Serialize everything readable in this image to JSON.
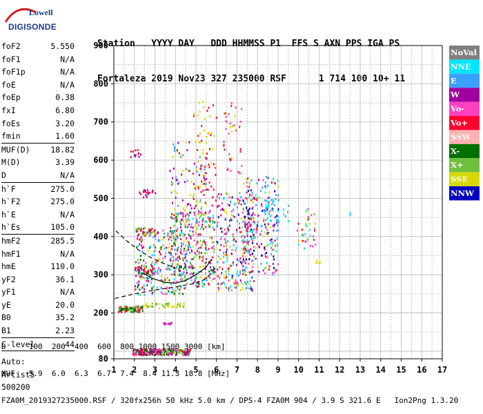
{
  "logo": {
    "line1": "Lowell",
    "line2": "DIGISONDE"
  },
  "header": {
    "line1": "Station   YYYY DAY   DDD HHMMSS P1  FFS S AXN PPS IGA PS",
    "line2": "Fortaleza 2019 Nov23 327 235000 RSF      1 714 100 10+ 11"
  },
  "params_groups": [
    [
      {
        "k": "foF2",
        "v": "5.550"
      },
      {
        "k": "foF1",
        "v": "N/A"
      },
      {
        "k": "foF1p",
        "v": "N/A"
      },
      {
        "k": "foE",
        "v": "N/A"
      },
      {
        "k": "foEp",
        "v": "0.38"
      },
      {
        "k": "fxI",
        "v": "6.80"
      },
      {
        "k": "foEs",
        "v": "3.20"
      },
      {
        "k": "fmin",
        "v": "1.60"
      }
    ],
    [
      {
        "k": "MUF(D)",
        "v": "18.82"
      },
      {
        "k": "M(D)",
        "v": "3.39"
      },
      {
        "k": "D",
        "v": "N/A"
      }
    ],
    [
      {
        "k": "h`F",
        "v": "275.0"
      },
      {
        "k": "h`F2",
        "v": "275.0"
      },
      {
        "k": "h`E",
        "v": "N/A"
      },
      {
        "k": "h`Es",
        "v": "105.0"
      }
    ],
    [
      {
        "k": "hmF2",
        "v": "285.5"
      },
      {
        "k": "hmF1",
        "v": "N/A"
      },
      {
        "k": "hmE",
        "v": "110.0"
      },
      {
        "k": "yF2",
        "v": "36.1"
      },
      {
        "k": "yF1",
        "v": "N/A"
      },
      {
        "k": "yE",
        "v": "20.0"
      },
      {
        "k": "B0",
        "v": "35.2"
      },
      {
        "k": "B1",
        "v": "2.23"
      }
    ],
    [
      {
        "k": "C-level",
        "v": "44"
      }
    ]
  ],
  "auto": {
    "line1": "Auto:",
    "line2": "Artist5",
    "line3": "500200"
  },
  "footer": {
    "d_line": "D     100  200  400  600  800 1000 1500 3000 [km]",
    "muf_line": "MUF   5.9  6.0  6.3  6.7  7.4  8.4 11.3 18.8 [MHz]",
    "file_line": "FZA0M_2019327235000.RSF / 320fx256h 50 kHz 5.0 km / DPS-4 FZA0M 904 / 3.9 S 321.6 E   Ion2Png 1.3.20"
  },
  "chart_data": {
    "type": "scatter",
    "xlabel": "",
    "ylabel": "",
    "xlim": [
      1,
      17
    ],
    "ylim": [
      80,
      900
    ],
    "xticks": [
      1,
      2,
      3,
      4,
      5,
      6,
      7,
      8,
      9,
      10,
      11,
      12,
      13,
      14,
      15,
      16,
      17
    ],
    "yticks": [
      80,
      200,
      300,
      400,
      500,
      600,
      700,
      800,
      900
    ],
    "grid": true,
    "legend_position": "right",
    "legend": [
      {
        "name": "NoVal",
        "color": "#808080"
      },
      {
        "name": "NNE",
        "color": "#00e5ff"
      },
      {
        "name": "E",
        "color": "#3aa0ff"
      },
      {
        "name": "W",
        "color": "#a000a0"
      },
      {
        "name": "Vo-",
        "color": "#ff40c0"
      },
      {
        "name": "Vo+",
        "color": "#ff0030"
      },
      {
        "name": "SSW",
        "color": "#ffb0b0"
      },
      {
        "name": "X-",
        "color": "#007000"
      },
      {
        "name": "X+",
        "color": "#70c040"
      },
      {
        "name": "SSE",
        "color": "#d8d800"
      },
      {
        "name": "NNW",
        "color": "#0000c0"
      }
    ],
    "clusters": [
      {
        "x": [
          1.9,
          3.3
        ],
        "y": [
          92,
          108
        ],
        "n": 160,
        "colors": [
          "#ff0030",
          "#a000a0",
          "#007000",
          "#ff40c0"
        ]
      },
      {
        "x": [
          3.3,
          4.7
        ],
        "y": [
          92,
          108
        ],
        "n": 90,
        "colors": [
          "#007000",
          "#70c040",
          "#a000a0",
          "#ff0030"
        ]
      },
      {
        "x": [
          1.2,
          2.4
        ],
        "y": [
          205,
          220
        ],
        "n": 80,
        "colors": [
          "#ff0030",
          "#007000",
          "#70c040"
        ]
      },
      {
        "x": [
          2.4,
          4.5
        ],
        "y": [
          214,
          228
        ],
        "n": 50,
        "colors": [
          "#d8d800",
          "#70c040"
        ]
      },
      {
        "x": [
          3.4,
          3.8
        ],
        "y": [
          172,
          178
        ],
        "n": 10,
        "colors": [
          "#ff40c0",
          "#a000a0"
        ]
      },
      {
        "x": [
          2.0,
          3.0
        ],
        "y": [
          305,
          325
        ],
        "n": 40,
        "colors": [
          "#ff0030",
          "#a000a0",
          "#007000"
        ]
      },
      {
        "x": [
          2.0,
          3.0
        ],
        "y": [
          405,
          425
        ],
        "n": 40,
        "colors": [
          "#70c040",
          "#ff0030"
        ]
      },
      {
        "x": [
          2.2,
          3.0
        ],
        "y": [
          505,
          525
        ],
        "n": 20,
        "colors": [
          "#ff0030",
          "#a000a0"
        ]
      },
      {
        "x": [
          1.8,
          2.4
        ],
        "y": [
          610,
          630
        ],
        "n": 12,
        "colors": [
          "#ff0030",
          "#a000a0"
        ]
      },
      {
        "x": [
          2.0,
          4.5
        ],
        "y": [
          250,
          420
        ],
        "n": 260,
        "colors": [
          "#3aa0ff",
          "#00e5ff",
          "#ff0030",
          "#a000a0",
          "#d8d800",
          "#ff40c0",
          "#007000",
          "#70c040"
        ]
      },
      {
        "x": [
          3.7,
          5.9
        ],
        "y": [
          270,
          470
        ],
        "n": 330,
        "colors": [
          "#ff0030",
          "#a000a0",
          "#3aa0ff",
          "#d8d800",
          "#ff40c0",
          "#00e5ff",
          "#007000",
          "#70c040"
        ]
      },
      {
        "x": [
          3.7,
          5.5
        ],
        "y": [
          420,
          650
        ],
        "n": 110,
        "colors": [
          "#d8d800",
          "#3aa0ff",
          "#a000a0"
        ]
      },
      {
        "x": [
          4.8,
          6.0
        ],
        "y": [
          480,
          760
        ],
        "n": 70,
        "colors": [
          "#d8d800",
          "#ff0030"
        ]
      },
      {
        "x": [
          6.0,
          7.8
        ],
        "y": [
          260,
          520
        ],
        "n": 280,
        "colors": [
          "#ff0030",
          "#a000a0",
          "#3aa0ff",
          "#d8d800",
          "#ff40c0",
          "#00e5ff",
          "#0000c0",
          "#70c040"
        ]
      },
      {
        "x": [
          6.3,
          7.2
        ],
        "y": [
          560,
          760
        ],
        "n": 40,
        "colors": [
          "#ff0030",
          "#d8d800",
          "#ff40c0"
        ]
      },
      {
        "x": [
          7.3,
          9.0
        ],
        "y": [
          300,
          560
        ],
        "n": 230,
        "colors": [
          "#3aa0ff",
          "#0000c0",
          "#a000a0",
          "#ff0030",
          "#d8d800",
          "#00e5ff",
          "#ff40c0"
        ]
      },
      {
        "x": [
          8.3,
          9.5
        ],
        "y": [
          440,
          500
        ],
        "n": 40,
        "colors": [
          "#00e5ff",
          "#3aa0ff"
        ]
      },
      {
        "x": [
          9.9,
          10.8
        ],
        "y": [
          370,
          480
        ],
        "n": 40,
        "colors": [
          "#ff0030",
          "#ff40c0",
          "#70c040",
          "#d8d800",
          "#00e5ff"
        ]
      },
      {
        "x": [
          10.8,
          11.1
        ],
        "y": [
          330,
          340
        ],
        "n": 4,
        "colors": [
          "#d8d800"
        ]
      },
      {
        "x": [
          12.3,
          12.5
        ],
        "y": [
          455,
          465
        ],
        "n": 2,
        "colors": [
          "#00e5ff"
        ]
      }
    ],
    "curves": [
      {
        "style": "dashed",
        "x": [
          1.05,
          2.0,
          3.0,
          4.0,
          5.0,
          5.5,
          6.0
        ],
        "y": [
          238,
          250,
          260,
          268,
          278,
          290,
          320
        ]
      },
      {
        "style": "dashed",
        "x": [
          1.1,
          1.6,
          2.2,
          2.8,
          3.4,
          4.0
        ],
        "y": [
          415,
          390,
          365,
          345,
          330,
          318
        ]
      },
      {
        "style": "solid",
        "x": [
          2.4,
          2.9,
          3.5,
          4.0,
          4.5,
          5.0,
          5.5,
          5.75
        ],
        "y": [
          305,
          290,
          280,
          278,
          285,
          300,
          320,
          340
        ]
      }
    ]
  }
}
